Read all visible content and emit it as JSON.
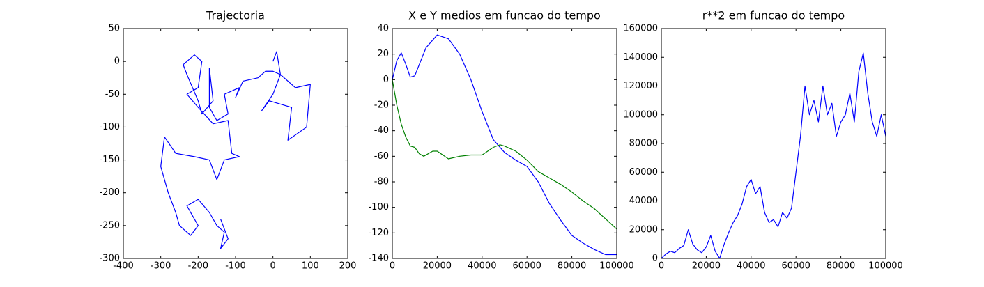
{
  "chart_data": [
    {
      "type": "line",
      "title": "Trajectoria",
      "series": [
        {
          "color": "#0000ff",
          "x": [
            0,
            10,
            20,
            60,
            100,
            90,
            40,
            50,
            -10,
            -30,
            0,
            20,
            0,
            -20,
            -40,
            -80,
            -100,
            -90,
            -130,
            -120,
            -150,
            -170,
            -170,
            -160,
            -190,
            -200,
            -230,
            -240,
            -210,
            -190,
            -200,
            -230,
            -200,
            -160,
            -120,
            -110,
            -90,
            -130,
            -150,
            -170,
            -210,
            -260,
            -290,
            -300,
            -280,
            -260,
            -250,
            -220,
            -200,
            -230,
            -200,
            -170,
            -150,
            -130,
            -140,
            -120,
            -140
          ],
          "values": [
            0,
            15,
            -20,
            -40,
            -35,
            -100,
            -120,
            -70,
            -60,
            -75,
            -50,
            -20,
            -15,
            -15,
            -25,
            -30,
            -55,
            -40,
            -50,
            -80,
            -90,
            -70,
            -10,
            -60,
            -80,
            -60,
            -20,
            -5,
            10,
            0,
            -40,
            -50,
            -70,
            -95,
            -90,
            -140,
            -145,
            -150,
            -180,
            -150,
            -145,
            -140,
            -115,
            -160,
            -200,
            -230,
            -250,
            -265,
            -250,
            -220,
            -210,
            -230,
            -250,
            -260,
            -285,
            -270,
            -240
          ]
        }
      ],
      "xlim": [
        -400,
        200
      ],
      "ylim": [
        -300,
        50
      ],
      "xticks": [
        -400,
        -300,
        -200,
        -100,
        0,
        100,
        200
      ],
      "yticks": [
        -300,
        -250,
        -200,
        -150,
        -100,
        -50,
        0,
        50
      ]
    },
    {
      "type": "line",
      "title": "X e Y medios em funcao do tempo",
      "series": [
        {
          "color": "#0000ff",
          "x": [
            0,
            2000,
            4000,
            6000,
            8000,
            10000,
            15000,
            20000,
            25000,
            30000,
            35000,
            40000,
            45000,
            50000,
            55000,
            60000,
            65000,
            70000,
            75000,
            80000,
            85000,
            90000,
            95000,
            100000
          ],
          "values": [
            0,
            15,
            21,
            12,
            2,
            3,
            25,
            35,
            32,
            20,
            0,
            -25,
            -47,
            -57,
            -63,
            -68,
            -80,
            -97,
            -110,
            -122,
            -128,
            -133,
            -137,
            -137
          ]
        },
        {
          "color": "#008000",
          "x": [
            0,
            2000,
            4000,
            6000,
            8000,
            10000,
            12000,
            14000,
            18000,
            20000,
            25000,
            30000,
            35000,
            40000,
            45000,
            48000,
            50000,
            55000,
            60000,
            65000,
            70000,
            75000,
            80000,
            85000,
            90000,
            95000,
            100000
          ],
          "values": [
            0,
            -20,
            -35,
            -45,
            -52,
            -53,
            -58,
            -60,
            -56,
            -56,
            -62,
            -60,
            -59,
            -59,
            -53,
            -51,
            -52,
            -56,
            -63,
            -72,
            -77,
            -82,
            -88,
            -95,
            -101,
            -109,
            -117
          ]
        }
      ],
      "xlim": [
        0,
        100000
      ],
      "ylim": [
        -140,
        40
      ],
      "xticks": [
        0,
        20000,
        40000,
        60000,
        80000,
        100000
      ],
      "yticks": [
        -140,
        -120,
        -100,
        -80,
        -60,
        -40,
        -20,
        0,
        20,
        40
      ]
    },
    {
      "type": "line",
      "title": "r**2 em funcao do tempo",
      "series": [
        {
          "color": "#0000ff",
          "x": [
            0,
            2000,
            4000,
            6000,
            8000,
            10000,
            12000,
            14000,
            16000,
            18000,
            20000,
            22000,
            24000,
            26000,
            28000,
            30000,
            32000,
            34000,
            36000,
            38000,
            40000,
            42000,
            44000,
            46000,
            48000,
            50000,
            52000,
            54000,
            56000,
            58000,
            60000,
            62000,
            64000,
            66000,
            68000,
            70000,
            72000,
            74000,
            76000,
            78000,
            80000,
            82000,
            84000,
            86000,
            88000,
            90000,
            92000,
            94000,
            96000,
            98000,
            100000
          ],
          "values": [
            0,
            3000,
            5000,
            4000,
            7000,
            9000,
            20000,
            10000,
            6000,
            4000,
            8000,
            16000,
            5000,
            0,
            10000,
            18000,
            25000,
            30000,
            38000,
            50000,
            55000,
            45000,
            50000,
            32000,
            25000,
            27000,
            22000,
            32000,
            28000,
            35000,
            60000,
            85000,
            120000,
            100000,
            110000,
            95000,
            120000,
            100000,
            108000,
            85000,
            95000,
            100000,
            115000,
            95000,
            130000,
            143000,
            115000,
            95000,
            85000,
            100000,
            85000
          ]
        }
      ],
      "xlim": [
        0,
        100000
      ],
      "ylim": [
        0,
        160000
      ],
      "xticks": [
        0,
        20000,
        40000,
        60000,
        80000,
        100000
      ],
      "yticks": [
        0,
        20000,
        40000,
        60000,
        80000,
        100000,
        120000,
        140000,
        160000
      ]
    }
  ]
}
